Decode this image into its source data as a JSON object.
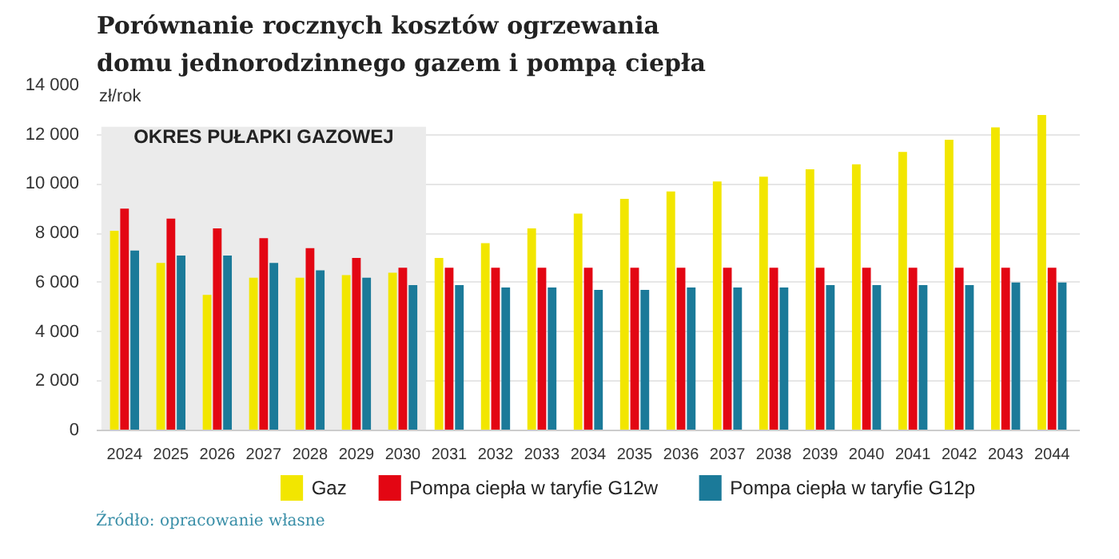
{
  "chart_data": {
    "type": "bar",
    "title": "Porównanie rocznych kosztów ogrzewania\ndomu jednorodzinnego gazem i pompą ciepła",
    "ylabel": "zł/rok",
    "categories": [
      "2024",
      "2025",
      "2026",
      "2027",
      "2028",
      "2029",
      "2030",
      "2031",
      "2032",
      "2033",
      "2034",
      "2035",
      "2036",
      "2037",
      "2038",
      "2039",
      "2040",
      "2041",
      "2042",
      "2043",
      "2044"
    ],
    "series": [
      {
        "name": "Gaz",
        "color": "#f2e600",
        "values": [
          8100,
          6800,
          5500,
          6200,
          6200,
          6300,
          6400,
          7000,
          7600,
          8200,
          8800,
          9400,
          9700,
          10100,
          10300,
          10600,
          10800,
          11300,
          11800,
          12300,
          12800
        ]
      },
      {
        "name": "Pompa ciepła w taryfie G12w",
        "color": "#e30613",
        "values": [
          9000,
          8600,
          8200,
          7800,
          7400,
          7000,
          6600,
          6600,
          6600,
          6600,
          6600,
          6600,
          6600,
          6600,
          6600,
          6600,
          6600,
          6600,
          6600,
          6600,
          6600
        ]
      },
      {
        "name": "Pompa ciepła w taryfie G12p",
        "color": "#1b7a99",
        "values": [
          7300,
          7100,
          7100,
          6800,
          6500,
          6200,
          5900,
          5900,
          5800,
          5800,
          5700,
          5700,
          5800,
          5800,
          5800,
          5900,
          5900,
          5900,
          5900,
          6000,
          6000
        ]
      }
    ],
    "ylim": [
      0,
      14000
    ],
    "yticks": [
      0,
      {
        "value": 2000,
        "label": "2 000"
      },
      {
        "value": 4000,
        "label": "4 000"
      },
      {
        "value": 6000,
        "label": "6 000"
      },
      {
        "value": 8000,
        "label": "8 000"
      },
      {
        "value": 10000,
        "label": "10 000"
      },
      {
        "value": 12000,
        "label": "12 000"
      },
      {
        "value": 14000,
        "label": "14 000"
      }
    ],
    "grid": "y",
    "legend": "bottom",
    "bands": [
      {
        "axis": "x",
        "from": "2024",
        "to": "2030",
        "label": "OKRES PUŁAPKI GAZOWEJ",
        "color": "#ebebeb"
      }
    ],
    "annotations": [
      "Źródło: opracowanie własne"
    ]
  }
}
